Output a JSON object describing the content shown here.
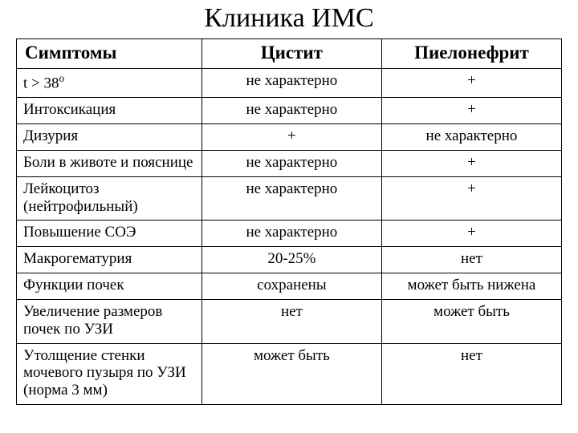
{
  "title": "Клиника ИМС",
  "table": {
    "type": "table",
    "background_color": "#ffffff",
    "border_color": "#000000",
    "text_color": "#000000",
    "title_fontsize": 34,
    "header_fontsize": 23,
    "cell_fontsize": 19,
    "font_family": "Times New Roman",
    "column_widths_pct": [
      34,
      33,
      33
    ],
    "columns": [
      "Симптомы",
      "Цистит",
      "Пиелонефрит"
    ],
    "column_align": [
      "left",
      "center",
      "center"
    ],
    "rows": [
      {
        "symptom_html": "t > 38<sup>o</sup>",
        "symptom_plain": "t > 38°",
        "cystitis": "не характерно",
        "pyelonephritis": "+"
      },
      {
        "symptom_html": "Интоксикация",
        "cystitis": "не характерно",
        "pyelonephritis": "+"
      },
      {
        "symptom_html": "Дизурия",
        "cystitis": "+",
        "pyelonephritis": "не характерно"
      },
      {
        "symptom_html": "Боли в животе и пояснице",
        "cystitis": "не характерно",
        "pyelonephritis": "+"
      },
      {
        "symptom_html": "Лейкоцитоз (нейтрофильный)",
        "cystitis": "не характерно",
        "pyelonephritis": "+"
      },
      {
        "symptom_html": "Повышение СОЭ",
        "cystitis": "не характерно",
        "pyelonephritis": "+"
      },
      {
        "symptom_html": "Макрогематурия",
        "cystitis": "20-25%",
        "pyelonephritis": "нет"
      },
      {
        "symptom_html": "Функции почек",
        "cystitis": "сохранены",
        "pyelonephritis": "может быть нижена"
      },
      {
        "symptom_html": "Увеличение размеров почек по УЗИ",
        "cystitis": "нет",
        "pyelonephritis": "может быть"
      },
      {
        "symptom_html": "Утолщение стенки мочевого пузыря по УЗИ (норма 3 мм)",
        "cystitis": "может быть",
        "pyelonephritis": "нет"
      }
    ]
  }
}
